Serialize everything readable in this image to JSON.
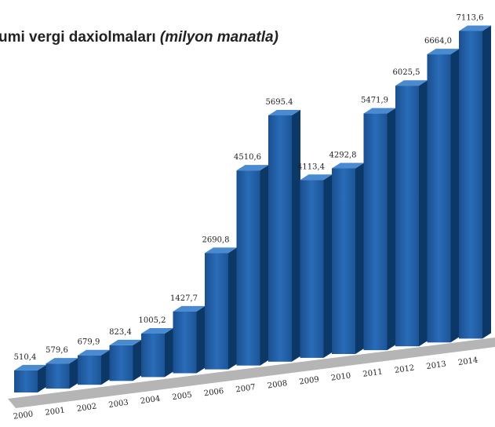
{
  "chart_data": {
    "type": "bar3d",
    "title": "umi vergi daxiolmaları",
    "unit": "(milyon manatla)",
    "categories": [
      "2000",
      "2001",
      "2002",
      "2003",
      "2004",
      "2005",
      "2006",
      "2007",
      "2008",
      "2009",
      "2010",
      "2011",
      "2012",
      "2013",
      "2014"
    ],
    "values": [
      510.4,
      579.6,
      679.9,
      823.4,
      1005.2,
      1427.7,
      2690.8,
      4510.6,
      5695.4,
      4113.4,
      4292.8,
      5471.9,
      6025.5,
      6664.0,
      7113.6
    ],
    "value_labels": [
      "510,4",
      "579,6",
      "679,9",
      "823,4",
      "1005,2",
      "1427,7",
      "2690,8",
      "4510,6",
      "5695.4",
      "4113,4",
      "4292,8",
      "5471,9",
      "6025,5",
      "6664,0",
      "7113,6"
    ],
    "color": "#1f5fa8"
  }
}
